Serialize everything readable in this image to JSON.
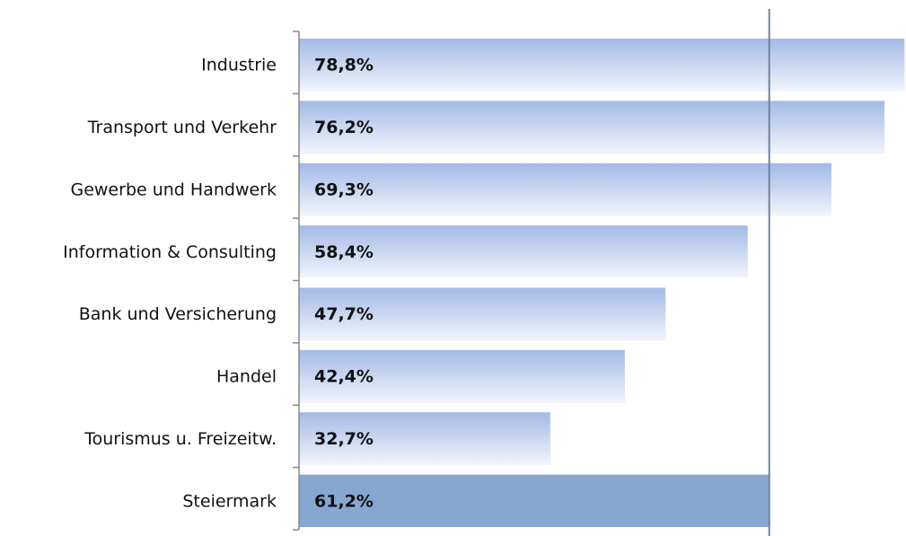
{
  "chart_data": {
    "type": "bar",
    "orientation": "horizontal",
    "categories": [
      "Industrie",
      "Transport und Verkehr",
      "Gewerbe und Handwerk",
      "Information & Consulting",
      "Bank und Versicherung",
      "Handel",
      "Tourismus u. Freizeitw.",
      "Steiermark"
    ],
    "values": [
      78.8,
      76.2,
      69.3,
      58.4,
      47.7,
      42.4,
      32.7,
      61.2
    ],
    "value_labels": [
      "78,8%",
      "76,2%",
      "69,3%",
      "58,4%",
      "47,7%",
      "42,4%",
      "32,7%",
      "61,2%"
    ],
    "colors": [
      "#a3b9e6",
      "#a3b9e6",
      "#a3b9e6",
      "#a3b9e6",
      "#a3b9e6",
      "#a3b9e6",
      "#a3b9e6",
      "#87a6d1"
    ],
    "xlim": [
      0,
      79
    ],
    "reference_line": 61.2,
    "reference_color": "#6f819c"
  }
}
